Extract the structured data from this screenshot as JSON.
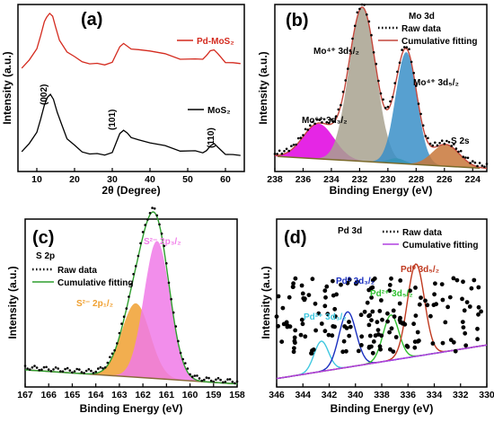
{
  "chart_data": [
    {
      "panel": "(a)",
      "type": "line",
      "xlabel": "2θ (Degree)",
      "ylabel": "Intensity (a.u.)",
      "xlim": [
        5,
        65
      ],
      "xticks": [
        10,
        20,
        30,
        40,
        50,
        60
      ],
      "series": [
        {
          "name": "Pd-MoS₂",
          "color": "#d42a1e",
          "values": [
            [
              6,
              0.62
            ],
            [
              8,
              0.66
            ],
            [
              10,
              0.74
            ],
            [
              11,
              0.82
            ],
            [
              12,
              0.9
            ],
            [
              12.6,
              0.93
            ],
            [
              13.4,
              0.95
            ],
            [
              14.2,
              0.93
            ],
            [
              15,
              0.86
            ],
            [
              16,
              0.79
            ],
            [
              18,
              0.72
            ],
            [
              20,
              0.68
            ],
            [
              22,
              0.66
            ],
            [
              24,
              0.65
            ],
            [
              26,
              0.64
            ],
            [
              28,
              0.64
            ],
            [
              30,
              0.66
            ],
            [
              31,
              0.7
            ],
            [
              32,
              0.74
            ],
            [
              33,
              0.76
            ],
            [
              34,
              0.75
            ],
            [
              35,
              0.74
            ],
            [
              37,
              0.73
            ],
            [
              40,
              0.72
            ],
            [
              44,
              0.7
            ],
            [
              48,
              0.68
            ],
            [
              52,
              0.67
            ],
            [
              54,
              0.68
            ],
            [
              55,
              0.7
            ],
            [
              56,
              0.72
            ],
            [
              57,
              0.72
            ],
            [
              58,
              0.7
            ],
            [
              60,
              0.66
            ],
            [
              62,
              0.65
            ],
            [
              64,
              0.64
            ]
          ]
        },
        {
          "name": "MoS₂",
          "color": "#000000",
          "values": [
            [
              6,
              0.12
            ],
            [
              8,
              0.16
            ],
            [
              10,
              0.24
            ],
            [
              11,
              0.32
            ],
            [
              12,
              0.4
            ],
            [
              12.8,
              0.45
            ],
            [
              13.6,
              0.47
            ],
            [
              14.4,
              0.44
            ],
            [
              15.4,
              0.36
            ],
            [
              16.5,
              0.28
            ],
            [
              18,
              0.2
            ],
            [
              20,
              0.15
            ],
            [
              22,
              0.12
            ],
            [
              24,
              0.11
            ],
            [
              26,
              0.1
            ],
            [
              28,
              0.1
            ],
            [
              30,
              0.12
            ],
            [
              31,
              0.17
            ],
            [
              32,
              0.22
            ],
            [
              33,
              0.24
            ],
            [
              34,
              0.23
            ],
            [
              35,
              0.21
            ],
            [
              37,
              0.19
            ],
            [
              40,
              0.17
            ],
            [
              44,
              0.15
            ],
            [
              48,
              0.13
            ],
            [
              52,
              0.12
            ],
            [
              54,
              0.12
            ],
            [
              55,
              0.13
            ],
            [
              56,
              0.15
            ],
            [
              57,
              0.16
            ],
            [
              58,
              0.14
            ],
            [
              60,
              0.11
            ],
            [
              62,
              0.1
            ],
            [
              64,
              0.09
            ]
          ]
        }
      ],
      "annotations": [
        "(002)",
        "(101)",
        "(110)"
      ]
    },
    {
      "panel": "(b)",
      "type": "area",
      "xlabel": "Binding Energy (eV)",
      "ylabel": "Intensity (a.u.)",
      "xlim": [
        238,
        223
      ],
      "xticks": [
        238,
        236,
        234,
        232,
        230,
        228,
        226,
        224
      ],
      "header": "Mo 3d",
      "legend": [
        "Raw data",
        "Cumulative fitting"
      ],
      "raw_color": "#000000",
      "fit_color": "#c4473c",
      "baseline_color": "#7a6a2a",
      "baseline": [
        [
          237.8,
          0.09
        ],
        [
          223.5,
          0.02
        ]
      ],
      "peaks": [
        {
          "label": "Mo⁶⁺ 3d₃/₂",
          "center": 234.9,
          "height": 0.21,
          "width": 1.1,
          "color": "#e000e0"
        },
        {
          "label": "Mo⁴⁺ 3d₃/₂",
          "center": 231.8,
          "height": 0.92,
          "width": 0.95,
          "color": "#a8a28f"
        },
        {
          "label": "",
          "center": 229.4,
          "height": 0.03,
          "width": 0.6,
          "color": "#20b050"
        },
        {
          "label": "Mo⁴⁺ 3d₅/₂",
          "center": 228.7,
          "height": 0.67,
          "width": 0.75,
          "color": "#3a8fc8"
        },
        {
          "label": "S 2s",
          "center": 225.9,
          "height": 0.13,
          "width": 0.95,
          "color": "#c8773a"
        }
      ]
    },
    {
      "panel": "(c)",
      "type": "area",
      "xlabel": "Binding Energy (eV)",
      "ylabel": "Intensity (a.u.)",
      "xlim": [
        167,
        158
      ],
      "xticks": [
        167,
        166,
        165,
        164,
        163,
        162,
        161,
        160,
        159,
        158
      ],
      "header": "S 2p",
      "legend": [
        "Raw data",
        "Cumulative fitting"
      ],
      "raw_color": "#000000",
      "fit_color": "#2e9e2e",
      "baseline_color": "#8a6a3a",
      "baseline": [
        [
          166.8,
          0.1
        ],
        [
          158.2,
          0.02
        ]
      ],
      "peaks": [
        {
          "label": "S²⁻ 2p₁/₂",
          "center": 162.3,
          "height": 0.44,
          "width": 0.6,
          "color": "#f0a030"
        },
        {
          "label": "S²⁻ 2p₃/₂",
          "center": 161.4,
          "height": 0.82,
          "width": 0.55,
          "color": "#f07ae8"
        }
      ]
    },
    {
      "panel": "(d)",
      "type": "scatter",
      "xlabel": "Binding Energy (eV)",
      "ylabel": "Intensity (a.u.)",
      "xlim": [
        346,
        330
      ],
      "xticks": [
        346,
        344,
        342,
        340,
        338,
        336,
        334,
        332,
        330
      ],
      "header": "Pd 3d",
      "legend": [
        "Raw data",
        "Cumulative fitting"
      ],
      "fit_color": "#b040e0",
      "peaks": [
        {
          "label": "Pd²⁺ 3d₃/₂",
          "center": 342.6,
          "height": 0.18,
          "width": 0.55,
          "color": "#40c8e0"
        },
        {
          "label": "Pd⁰ 3d₃/₂",
          "center": 340.6,
          "height": 0.33,
          "width": 0.65,
          "color": "#1a30c0"
        },
        {
          "label": "Pd²⁺ 3d₅/₂",
          "center": 337.3,
          "height": 0.27,
          "width": 0.6,
          "color": "#2fc02f"
        },
        {
          "label": "Pd⁰ 3d₅/₂",
          "center": 335.4,
          "height": 0.55,
          "width": 0.65,
          "color": "#c03a20"
        }
      ]
    }
  ]
}
